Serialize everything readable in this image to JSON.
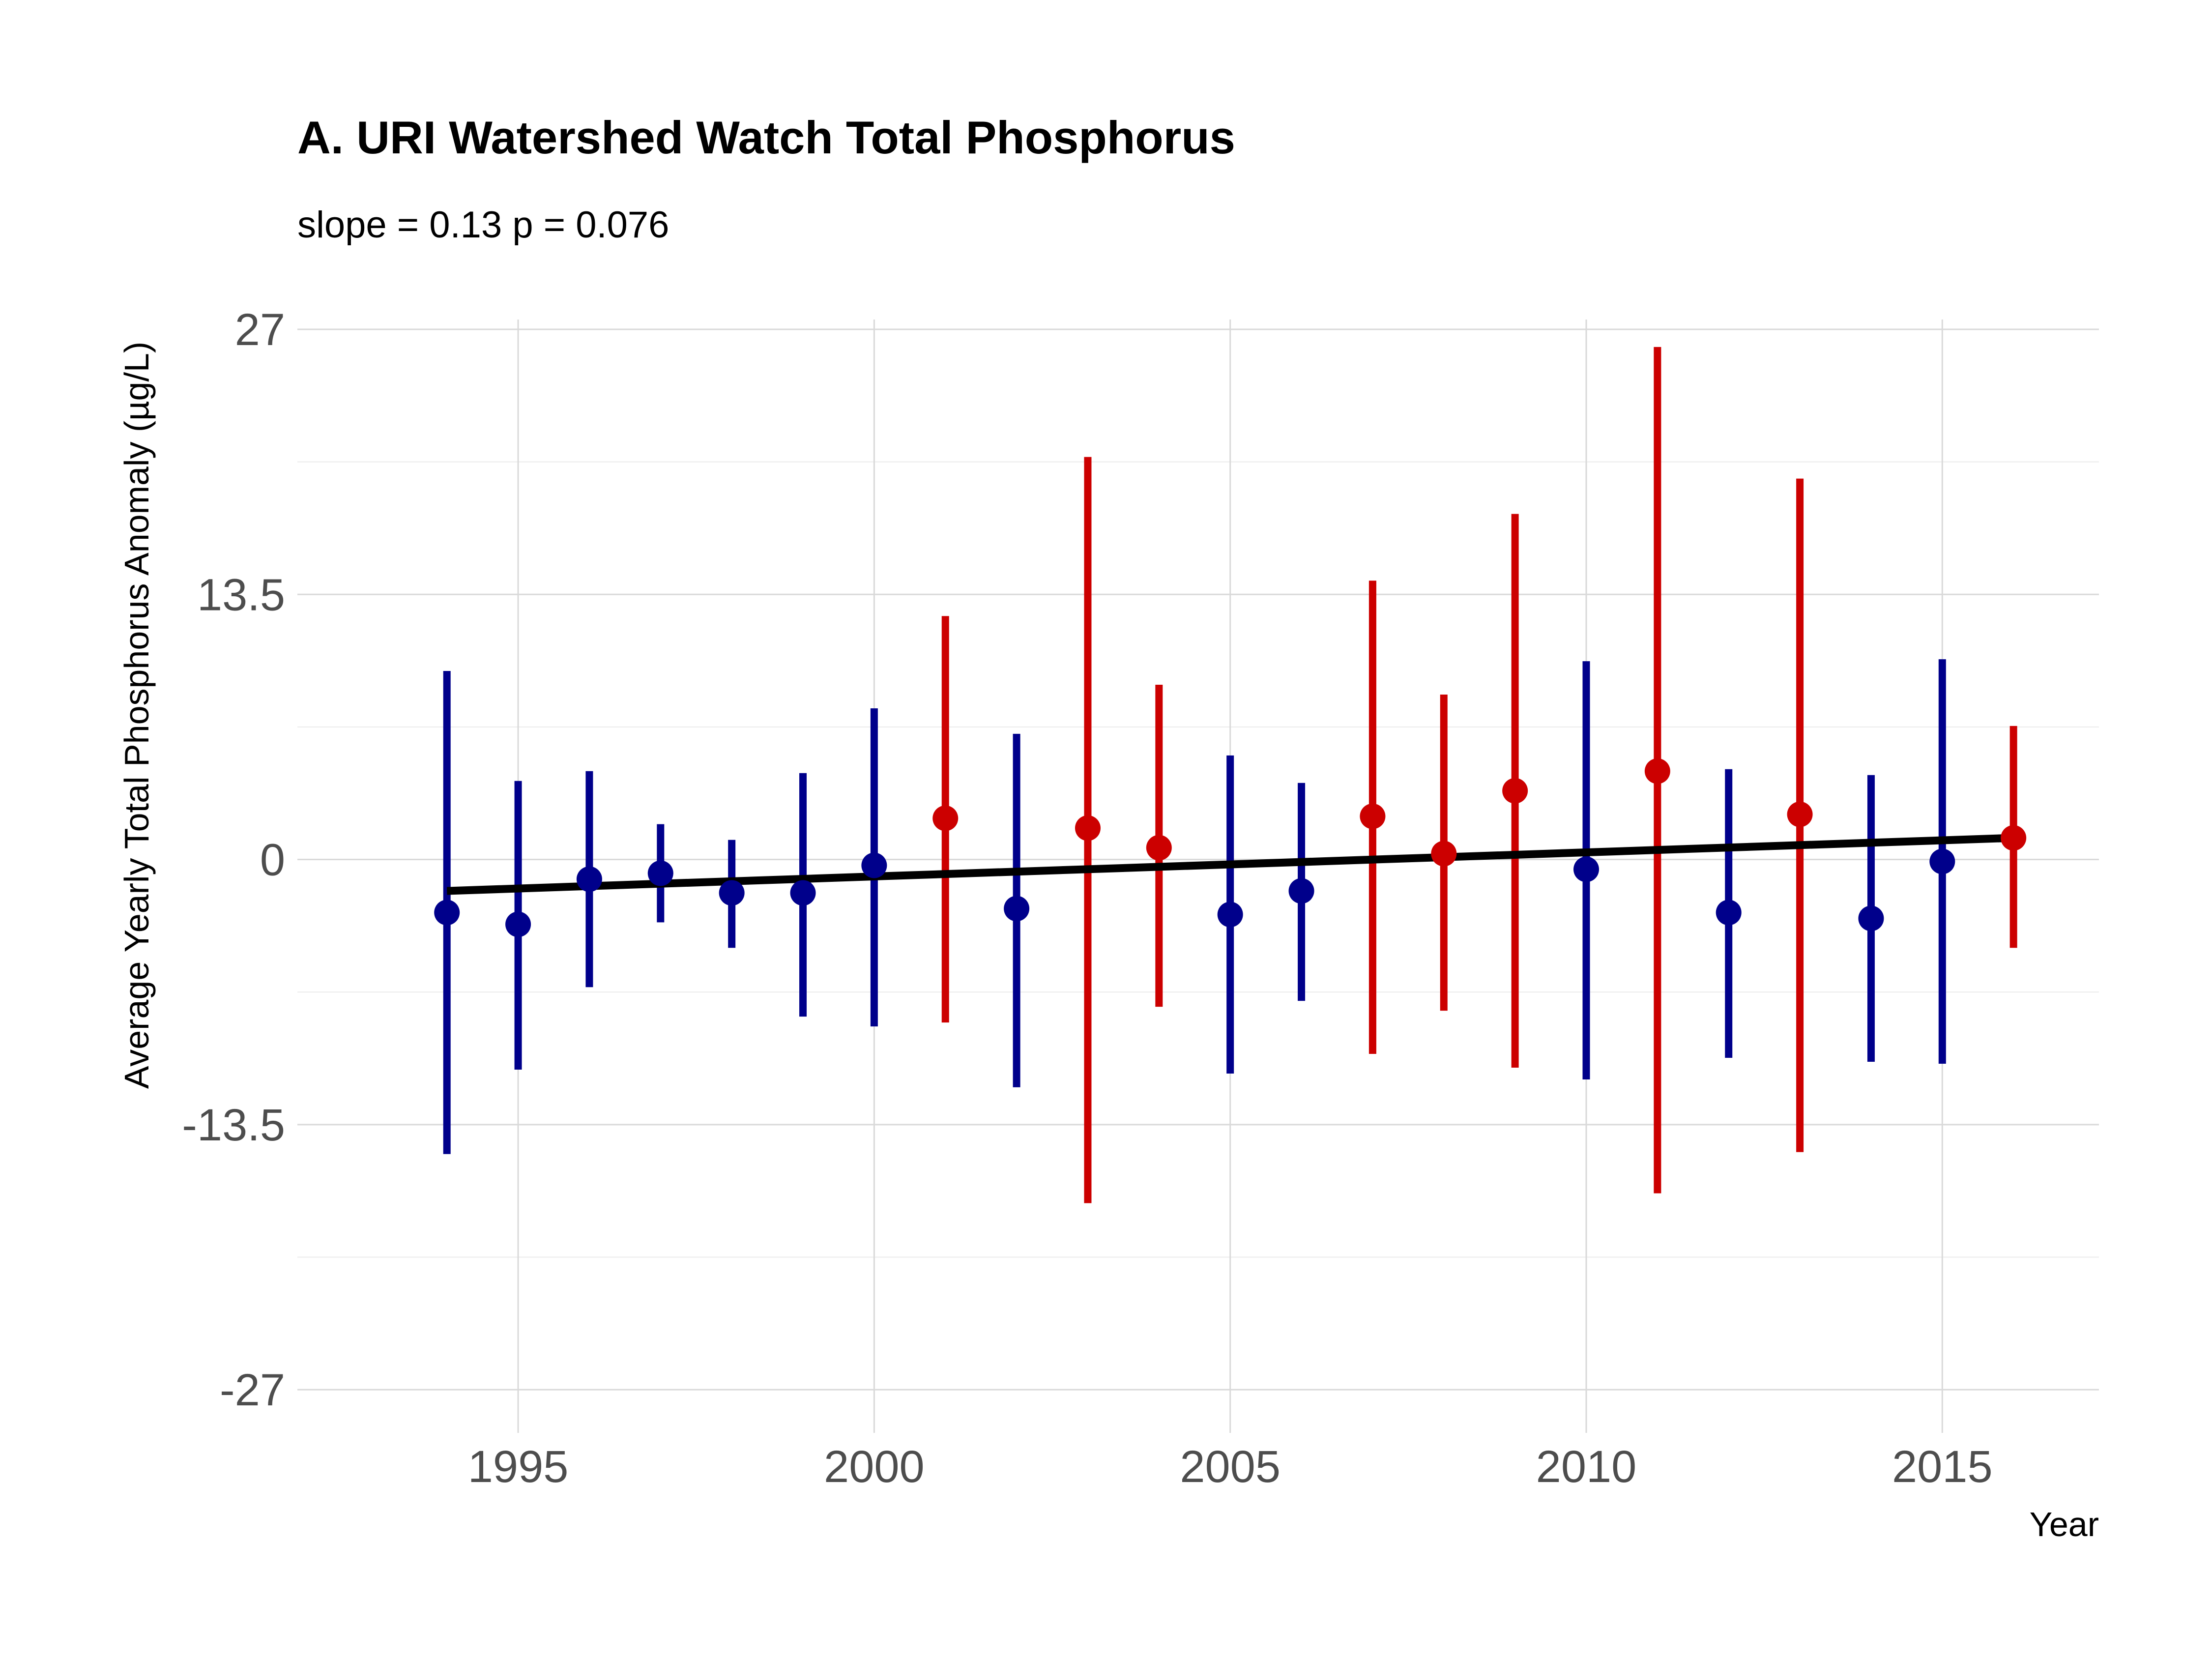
{
  "chart_data": {
    "type": "scatter",
    "title": "A. URI Watershed Watch Total Phosphorus",
    "subtitle": "slope = 0.13 p = 0.076",
    "xlabel": "Year",
    "ylabel": "Average Yearly Total Phosphorus Anomaly (µg/L)",
    "xlim": [
      1991.9,
      2017.2
    ],
    "ylim": [
      -29.2,
      27.5
    ],
    "x_ticks": [
      "1995",
      "2000",
      "2005",
      "2010",
      "2015"
    ],
    "y_ticks": [
      "27",
      "13.5",
      "0",
      "-13.5",
      "-27"
    ],
    "grid": true,
    "legend": "none",
    "colors": {
      "below": "#00008b",
      "above": "#cc0000",
      "trend": "#000000"
    },
    "points": [
      {
        "year": 1994,
        "value": -2.7,
        "lower": -15.0,
        "upper": 9.6,
        "group": "below"
      },
      {
        "year": 1995,
        "value": -3.3,
        "lower": -10.7,
        "upper": 4.0,
        "group": "below"
      },
      {
        "year": 1996,
        "value": -1.0,
        "lower": -6.5,
        "upper": 4.5,
        "group": "below"
      },
      {
        "year": 1997,
        "value": -0.7,
        "lower": -3.2,
        "upper": 1.8,
        "group": "below"
      },
      {
        "year": 1998,
        "value": -1.7,
        "lower": -4.5,
        "upper": 1.0,
        "group": "below"
      },
      {
        "year": 1999,
        "value": -1.7,
        "lower": -8.0,
        "upper": 4.4,
        "group": "below"
      },
      {
        "year": 2000,
        "value": -0.3,
        "lower": -8.5,
        "upper": 7.7,
        "group": "below"
      },
      {
        "year": 2001,
        "value": 2.1,
        "lower": -8.3,
        "upper": 12.4,
        "group": "above"
      },
      {
        "year": 2002,
        "value": -2.5,
        "lower": -11.6,
        "upper": 6.4,
        "group": "below"
      },
      {
        "year": 2003,
        "value": 1.6,
        "lower": -17.5,
        "upper": 20.5,
        "group": "above"
      },
      {
        "year": 2004,
        "value": 0.6,
        "lower": -7.5,
        "upper": 8.9,
        "group": "above"
      },
      {
        "year": 2005,
        "value": -2.8,
        "lower": -10.9,
        "upper": 5.3,
        "group": "below"
      },
      {
        "year": 2006,
        "value": -1.6,
        "lower": -7.2,
        "upper": 3.9,
        "group": "below"
      },
      {
        "year": 2007,
        "value": 2.2,
        "lower": -9.9,
        "upper": 14.2,
        "group": "above"
      },
      {
        "year": 2008,
        "value": 0.3,
        "lower": -7.7,
        "upper": 8.4,
        "group": "above"
      },
      {
        "year": 2009,
        "value": 3.5,
        "lower": -10.6,
        "upper": 17.6,
        "group": "above"
      },
      {
        "year": 2010,
        "value": -0.5,
        "lower": -11.2,
        "upper": 10.1,
        "group": "below"
      },
      {
        "year": 2011,
        "value": 4.5,
        "lower": -17.0,
        "upper": 26.1,
        "group": "above"
      },
      {
        "year": 2012,
        "value": -2.7,
        "lower": -10.1,
        "upper": 4.6,
        "group": "below"
      },
      {
        "year": 2013,
        "value": 2.3,
        "lower": -14.9,
        "upper": 19.4,
        "group": "above"
      },
      {
        "year": 2014,
        "value": -3.0,
        "lower": -10.3,
        "upper": 4.3,
        "group": "below"
      },
      {
        "year": 2015,
        "value": -0.1,
        "lower": -10.4,
        "upper": 10.2,
        "group": "below"
      },
      {
        "year": 2016,
        "value": 1.1,
        "lower": -4.5,
        "upper": 6.8,
        "group": "above"
      }
    ],
    "trend_line": {
      "x": [
        1994,
        2016
      ],
      "y": [
        -1.6,
        1.1
      ]
    }
  }
}
